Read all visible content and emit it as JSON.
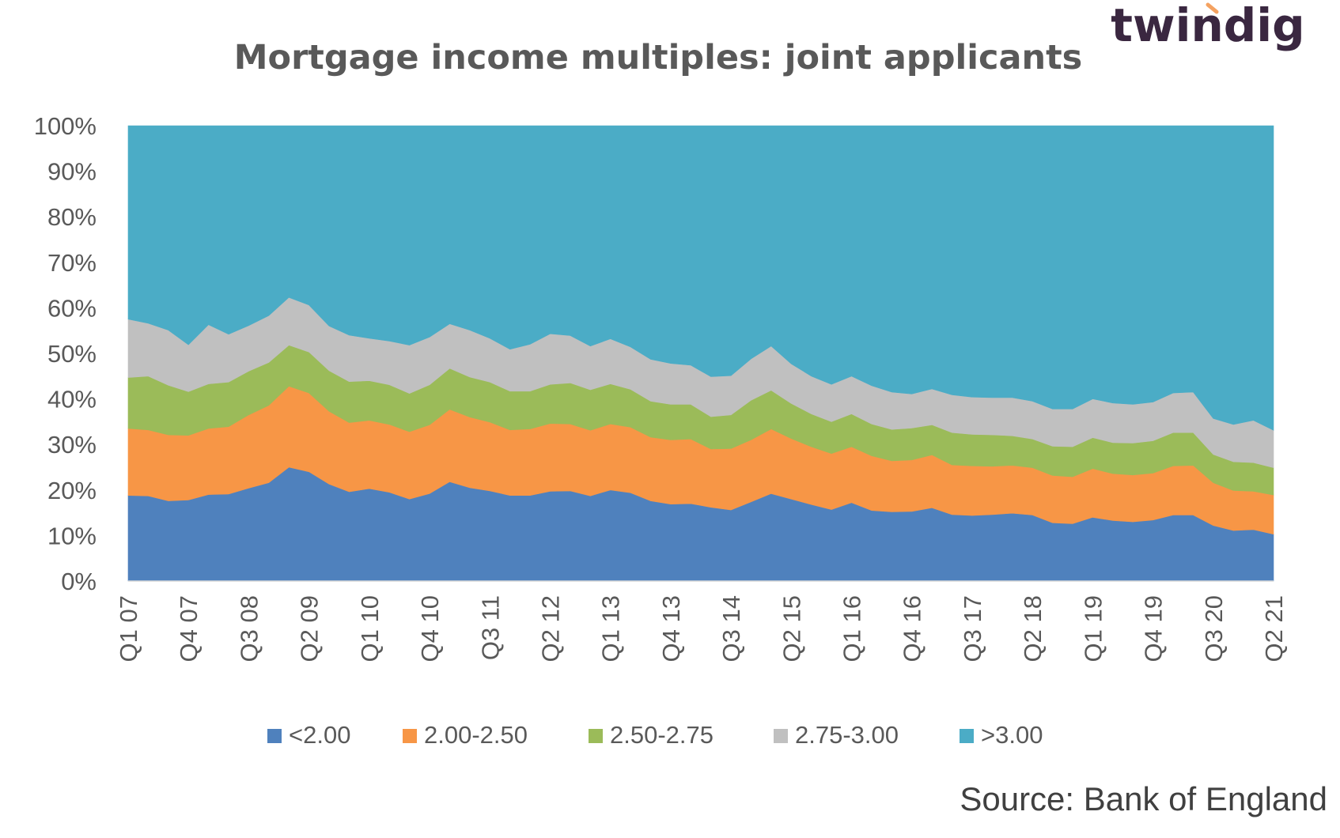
{
  "logo": {
    "text": "twindig",
    "color": "#3a2740",
    "accent": "#f4a261"
  },
  "source": "Source: Bank of England",
  "chart_data": {
    "type": "area",
    "stacked": true,
    "title": "Mortgage income multiples: joint applicants",
    "xlabel": "",
    "ylabel": "",
    "ylim": [
      0,
      100
    ],
    "y_ticks": [
      "0%",
      "10%",
      "20%",
      "30%",
      "40%",
      "50%",
      "60%",
      "70%",
      "80%",
      "90%",
      "100%"
    ],
    "x_tick_labels": [
      "Q1 07",
      "Q4 07",
      "Q3 08",
      "Q2 09",
      "Q1 10",
      "Q4 10",
      "Q3 11",
      "Q2 12",
      "Q1 13",
      "Q4 13",
      "Q3 14",
      "Q2 15",
      "Q1 16",
      "Q4 16",
      "Q3 17",
      "Q2 18",
      "Q1 19",
      "Q4 19",
      "Q3 20",
      "Q2 21"
    ],
    "categories": [
      "Q1 07",
      "Q2 07",
      "Q3 07",
      "Q4 07",
      "Q1 08",
      "Q2 08",
      "Q3 08",
      "Q4 08",
      "Q1 09",
      "Q2 09",
      "Q3 09",
      "Q4 09",
      "Q1 10",
      "Q2 10",
      "Q3 10",
      "Q4 10",
      "Q1 11",
      "Q2 11",
      "Q3 11",
      "Q4 11",
      "Q1 12",
      "Q2 12",
      "Q3 12",
      "Q4 12",
      "Q1 13",
      "Q2 13",
      "Q3 13",
      "Q4 13",
      "Q1 14",
      "Q2 14",
      "Q3 14",
      "Q4 14",
      "Q1 15",
      "Q2 15",
      "Q3 15",
      "Q4 15",
      "Q1 16",
      "Q2 16",
      "Q3 16",
      "Q4 16",
      "Q1 17",
      "Q2 17",
      "Q3 17",
      "Q4 17",
      "Q1 18",
      "Q2 18",
      "Q3 18",
      "Q4 18",
      "Q1 19",
      "Q2 19",
      "Q3 19",
      "Q4 19",
      "Q1 20",
      "Q2 20",
      "Q3 20",
      "Q4 20",
      "Q1 21",
      "Q2 21"
    ],
    "legend_position": "bottom",
    "grid": false,
    "series": [
      {
        "name": "<2.00",
        "color": "#4f81bd",
        "values": [
          18.8,
          18.7,
          17.6,
          17.8,
          19.0,
          19.1,
          20.4,
          21.6,
          25.0,
          24.0,
          21.3,
          19.6,
          20.3,
          19.5,
          18.0,
          19.2,
          21.8,
          20.5,
          19.8,
          18.8,
          18.8,
          19.7,
          19.8,
          18.7,
          20.0,
          19.4,
          17.6,
          16.9,
          17.0,
          16.2,
          15.6,
          17.4,
          19.2,
          18.0,
          16.8,
          15.7,
          17.2,
          15.5,
          15.2,
          15.3,
          16.1,
          14.6,
          14.4,
          14.6,
          14.9,
          14.5,
          12.8,
          12.6,
          14.0,
          13.3,
          13.0,
          13.4,
          14.5,
          14.5,
          12.2,
          11.1,
          11.3,
          10.3
        ]
      },
      {
        "name": "2.00-2.50",
        "color": "#f79646",
        "values": [
          14.7,
          14.5,
          14.5,
          14.2,
          14.5,
          14.8,
          16.1,
          17.0,
          17.8,
          17.3,
          16.0,
          15.2,
          15.0,
          14.9,
          14.8,
          15.1,
          15.9,
          15.5,
          15.1,
          14.4,
          14.6,
          14.9,
          14.7,
          14.4,
          14.5,
          14.4,
          14.0,
          14.1,
          14.2,
          12.8,
          13.5,
          13.6,
          14.2,
          13.3,
          12.7,
          12.3,
          12.3,
          12.0,
          11.2,
          11.3,
          11.6,
          10.9,
          10.9,
          10.6,
          10.5,
          10.4,
          10.4,
          10.3,
          10.7,
          10.3,
          10.3,
          10.3,
          10.8,
          10.9,
          9.4,
          8.8,
          8.4,
          8.6
        ]
      },
      {
        "name": "2.50-2.75",
        "color": "#9bbb59",
        "values": [
          11.2,
          11.8,
          10.9,
          9.6,
          9.8,
          9.8,
          9.6,
          9.4,
          9.0,
          9.0,
          8.9,
          9.0,
          8.7,
          8.7,
          8.4,
          8.8,
          9.0,
          8.8,
          8.8,
          8.5,
          8.3,
          8.6,
          9.0,
          8.9,
          8.8,
          8.3,
          7.9,
          7.8,
          7.6,
          7.1,
          7.4,
          8.7,
          8.5,
          7.7,
          7.2,
          7.0,
          7.2,
          7.0,
          6.9,
          7.0,
          6.6,
          7.1,
          6.9,
          6.9,
          6.5,
          6.3,
          6.4,
          6.6,
          6.8,
          6.8,
          7.0,
          7.1,
          7.3,
          7.2,
          6.2,
          6.3,
          6.3,
          6.0
        ]
      },
      {
        "name": "2.75-3.00",
        "color": "#c0c0c0",
        "values": [
          12.8,
          11.6,
          12.1,
          10.3,
          13.0,
          10.5,
          10.0,
          10.3,
          10.5,
          10.3,
          9.8,
          10.2,
          9.3,
          9.6,
          10.6,
          10.5,
          9.8,
          10.3,
          9.6,
          9.2,
          10.3,
          11.1,
          10.4,
          9.6,
          9.9,
          9.3,
          9.2,
          9.0,
          8.6,
          8.8,
          8.6,
          9.1,
          9.7,
          8.7,
          8.3,
          8.2,
          8.3,
          8.4,
          8.2,
          7.5,
          7.9,
          8.3,
          8.2,
          8.2,
          8.4,
          8.3,
          8.2,
          8.3,
          8.5,
          8.7,
          8.5,
          8.5,
          8.7,
          8.9,
          7.9,
          8.2,
          9.3,
          8.2
        ]
      },
      {
        "name": ">3.00",
        "color": "#4bacc6",
        "values": [
          42.5,
          43.4,
          44.9,
          48.1,
          43.7,
          45.8,
          43.9,
          41.7,
          37.7,
          39.4,
          44.0,
          46.0,
          46.7,
          47.3,
          48.2,
          46.4,
          43.5,
          44.9,
          46.7,
          49.1,
          48.0,
          45.7,
          46.1,
          48.4,
          46.8,
          48.6,
          51.3,
          52.2,
          52.6,
          55.1,
          54.9,
          51.2,
          48.4,
          52.3,
          55.0,
          56.8,
          55.0,
          57.1,
          58.5,
          58.9,
          57.8,
          59.1,
          59.6,
          59.7,
          59.7,
          60.5,
          62.2,
          62.2,
          60.0,
          60.9,
          61.2,
          60.7,
          58.7,
          58.5,
          64.3,
          65.6,
          64.7,
          66.9
        ]
      }
    ]
  }
}
